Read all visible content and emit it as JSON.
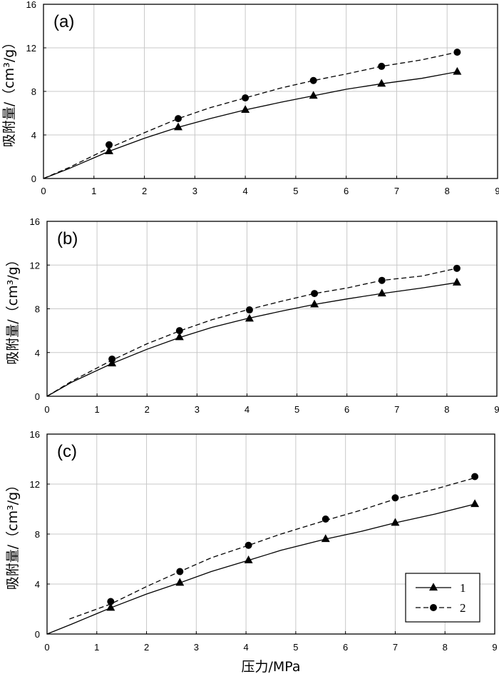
{
  "chart_data": [
    {
      "type": "line",
      "panel_label": "(a)",
      "ylabel": "吸附量/（cm³/g）",
      "xlim": [
        0,
        9
      ],
      "ylim": [
        0,
        16
      ],
      "xticks": [
        "0",
        "1",
        "2",
        "3",
        "4",
        "5",
        "6",
        "7",
        "8",
        "9"
      ],
      "yticks": [
        "0",
        "4",
        "8",
        "12",
        "16"
      ],
      "grid": true,
      "series": [
        {
          "name": "1",
          "marker": "triangle",
          "line_style": "solid",
          "curve": [
            [
              0,
              0
            ],
            [
              0.5,
              0.9
            ],
            [
              1.3,
              2.5
            ],
            [
              2,
              3.7
            ],
            [
              2.67,
              4.7
            ],
            [
              3.3,
              5.5
            ],
            [
              4,
              6.3
            ],
            [
              4.7,
              7.0
            ],
            [
              5.35,
              7.6
            ],
            [
              6,
              8.2
            ],
            [
              6.7,
              8.7
            ],
            [
              7.5,
              9.2
            ],
            [
              8.2,
              9.8
            ]
          ],
          "points": [
            [
              1.3,
              2.5
            ],
            [
              2.67,
              4.7
            ],
            [
              4.0,
              6.3
            ],
            [
              5.35,
              7.6
            ],
            [
              6.7,
              8.7
            ],
            [
              8.2,
              9.8
            ]
          ]
        },
        {
          "name": "2",
          "marker": "circle",
          "line_style": "dashed",
          "curve": [
            [
              0,
              0
            ],
            [
              0.5,
              1.0
            ],
            [
              1.3,
              2.8
            ],
            [
              2,
              4.2
            ],
            [
              2.67,
              5.5
            ],
            [
              3.3,
              6.5
            ],
            [
              4,
              7.4
            ],
            [
              4.7,
              8.3
            ],
            [
              5.35,
              9.0
            ],
            [
              6,
              9.6
            ],
            [
              6.7,
              10.3
            ],
            [
              7.5,
              10.9
            ],
            [
              8.2,
              11.6
            ]
          ],
          "points": [
            [
              1.3,
              3.1
            ],
            [
              2.67,
              5.5
            ],
            [
              4.0,
              7.4
            ],
            [
              5.35,
              9.0
            ],
            [
              6.7,
              10.3
            ],
            [
              8.2,
              11.6
            ]
          ]
        }
      ]
    },
    {
      "type": "line",
      "panel_label": "(b)",
      "ylabel": "吸附量/（cm³/g）",
      "xlim": [
        0,
        9
      ],
      "ylim": [
        0,
        16
      ],
      "xticks": [
        "0",
        "1",
        "2",
        "3",
        "4",
        "5",
        "6",
        "7",
        "8",
        "9"
      ],
      "yticks": [
        "0",
        "4",
        "8",
        "12",
        "16"
      ],
      "grid": true,
      "series": [
        {
          "name": "1",
          "marker": "triangle",
          "line_style": "solid",
          "curve": [
            [
              0,
              0
            ],
            [
              0.5,
              1.3
            ],
            [
              1.3,
              3.0
            ],
            [
              2,
              4.3
            ],
            [
              2.67,
              5.4
            ],
            [
              3.3,
              6.3
            ],
            [
              4,
              7.1
            ],
            [
              4.7,
              7.8
            ],
            [
              5.35,
              8.4
            ],
            [
              6,
              8.9
            ],
            [
              6.7,
              9.4
            ],
            [
              7.5,
              9.9
            ],
            [
              8.2,
              10.4
            ]
          ],
          "points": [
            [
              1.3,
              3.0
            ],
            [
              2.65,
              5.4
            ],
            [
              4.05,
              7.1
            ],
            [
              5.35,
              8.4
            ],
            [
              6.7,
              9.4
            ],
            [
              8.2,
              10.4
            ]
          ]
        },
        {
          "name": "2",
          "marker": "circle",
          "line_style": "dashed",
          "curve": [
            [
              0,
              0
            ],
            [
              0.5,
              1.4
            ],
            [
              1.3,
              3.3
            ],
            [
              2,
              4.8
            ],
            [
              2.67,
              6.0
            ],
            [
              3.3,
              7.0
            ],
            [
              4,
              7.9
            ],
            [
              4.7,
              8.7
            ],
            [
              5.35,
              9.4
            ],
            [
              6,
              9.9
            ],
            [
              6.7,
              10.6
            ],
            [
              7.5,
              11.0
            ],
            [
              8.2,
              11.7
            ]
          ],
          "points": [
            [
              1.3,
              3.4
            ],
            [
              2.65,
              6.0
            ],
            [
              4.05,
              7.9
            ],
            [
              5.35,
              9.4
            ],
            [
              6.7,
              10.6
            ],
            [
              8.2,
              11.7
            ]
          ]
        }
      ]
    },
    {
      "type": "line",
      "panel_label": "(c)",
      "ylabel": "吸附量/（cm³/g）",
      "xlabel": "压力/MPa",
      "xlim": [
        0,
        9
      ],
      "ylim": [
        0,
        16
      ],
      "xticks": [
        "0",
        "1",
        "2",
        "3",
        "4",
        "5",
        "6",
        "7",
        "8",
        "9"
      ],
      "yticks": [
        "0",
        "4",
        "8",
        "12",
        "16"
      ],
      "grid": true,
      "legend": {
        "placement": "bottom-right",
        "entries": [
          {
            "label": "1",
            "marker": "triangle",
            "line_style": "solid"
          },
          {
            "label": "2",
            "marker": "circle",
            "line_style": "dashed"
          }
        ]
      },
      "series": [
        {
          "name": "1",
          "marker": "triangle",
          "line_style": "solid",
          "curve": [
            [
              0,
              0
            ],
            [
              0.5,
              0.8
            ],
            [
              1.28,
              2.1
            ],
            [
              2,
              3.2
            ],
            [
              2.67,
              4.1
            ],
            [
              3.3,
              5.0
            ],
            [
              4.05,
              5.9
            ],
            [
              4.7,
              6.7
            ],
            [
              5.6,
              7.6
            ],
            [
              6.3,
              8.2
            ],
            [
              7.0,
              8.9
            ],
            [
              7.8,
              9.6
            ],
            [
              8.6,
              10.4
            ]
          ],
          "points": [
            [
              1.28,
              2.1
            ],
            [
              2.67,
              4.1
            ],
            [
              4.05,
              5.9
            ],
            [
              5.6,
              7.6
            ],
            [
              7.0,
              8.9
            ],
            [
              8.6,
              10.4
            ]
          ]
        },
        {
          "name": "2",
          "marker": "circle",
          "line_style": "dashed",
          "curve": [
            [
              0.45,
              1.2
            ],
            [
              1.28,
              2.4
            ],
            [
              2,
              3.8
            ],
            [
              2.67,
              5.0
            ],
            [
              3.3,
              6.1
            ],
            [
              4.05,
              7.1
            ],
            [
              4.7,
              8.0
            ],
            [
              5.6,
              9.1
            ],
            [
              6.3,
              9.9
            ],
            [
              7.0,
              10.8
            ],
            [
              7.8,
              11.6
            ],
            [
              8.6,
              12.5
            ]
          ],
          "points": [
            [
              1.28,
              2.6
            ],
            [
              2.67,
              5.0
            ],
            [
              4.05,
              7.1
            ],
            [
              5.6,
              9.2
            ],
            [
              7.0,
              10.9
            ],
            [
              8.6,
              12.6
            ]
          ]
        }
      ]
    }
  ]
}
